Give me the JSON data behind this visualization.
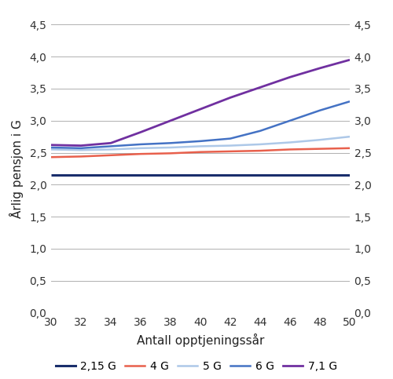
{
  "x": [
    30,
    32,
    34,
    36,
    38,
    40,
    42,
    44,
    46,
    48,
    50
  ],
  "series": {
    "2,15 G": {
      "values": [
        2.15,
        2.15,
        2.15,
        2.15,
        2.15,
        2.15,
        2.15,
        2.15,
        2.15,
        2.15,
        2.15
      ],
      "color": "#1a2e6c",
      "linewidth": 2.2,
      "zorder": 2
    },
    "4 G": {
      "values": [
        2.43,
        2.44,
        2.46,
        2.48,
        2.49,
        2.51,
        2.52,
        2.53,
        2.55,
        2.56,
        2.57
      ],
      "color": "#e8604c",
      "linewidth": 1.8,
      "zorder": 3
    },
    "5 G": {
      "values": [
        2.55,
        2.54,
        2.55,
        2.57,
        2.58,
        2.6,
        2.61,
        2.63,
        2.66,
        2.7,
        2.75
      ],
      "color": "#adc8e8",
      "linewidth": 1.8,
      "zorder": 4
    },
    "6 G": {
      "values": [
        2.58,
        2.57,
        2.6,
        2.63,
        2.65,
        2.68,
        2.72,
        2.84,
        3.0,
        3.16,
        3.3
      ],
      "color": "#4472c4",
      "linewidth": 1.8,
      "zorder": 5
    },
    "7,1 G": {
      "values": [
        2.62,
        2.61,
        2.65,
        2.82,
        3.0,
        3.18,
        3.36,
        3.52,
        3.68,
        3.82,
        3.95
      ],
      "color": "#7030a0",
      "linewidth": 2.0,
      "zorder": 6
    }
  },
  "xlabel": "Antall opptjeningssår",
  "ylabel": "Årlig pensjon i G",
  "ylim": [
    0.0,
    4.5
  ],
  "yticks": [
    0.0,
    0.5,
    1.0,
    1.5,
    2.0,
    2.5,
    3.0,
    3.5,
    4.0,
    4.5
  ],
  "xlim": [
    30,
    50
  ],
  "xticks": [
    30,
    32,
    34,
    36,
    38,
    40,
    42,
    44,
    46,
    48,
    50
  ],
  "grid_color": "#b0b0b0",
  "background_color": "#ffffff",
  "legend_order": [
    "2,15 G",
    "4 G",
    "5 G",
    "6 G",
    "7,1 G"
  ],
  "tick_fontsize": 10,
  "label_fontsize": 11,
  "legend_fontsize": 10
}
